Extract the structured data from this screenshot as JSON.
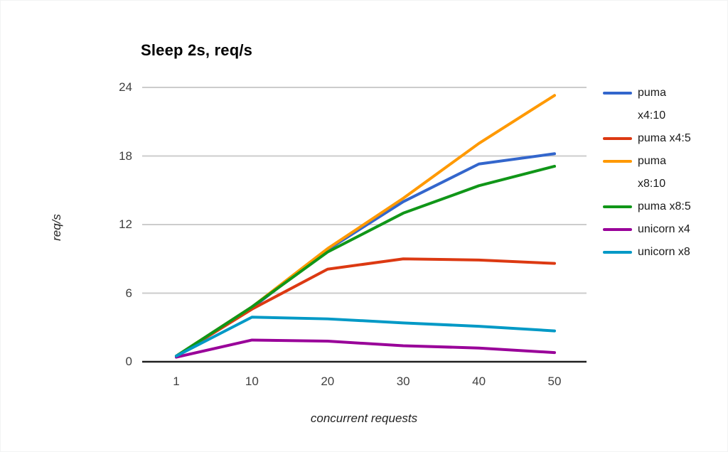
{
  "chart_data": {
    "type": "line",
    "title": "Sleep 2s, req/s",
    "xlabel": "concurrent requests",
    "ylabel": "req/s",
    "x_categories": [
      "1",
      "10",
      "20",
      "30",
      "40",
      "50"
    ],
    "yticks": [
      0,
      6,
      12,
      18,
      24
    ],
    "ylim": [
      0,
      24
    ],
    "grid": true,
    "legend_position": "right",
    "series": [
      {
        "name": "puma x4:10",
        "label_lines": [
          "puma",
          "x4:10"
        ],
        "color": "#3366CC",
        "values": [
          0.5,
          4.7,
          9.8,
          14.0,
          17.3,
          18.2
        ]
      },
      {
        "name": "puma x4:5",
        "label_lines": [
          "puma x4:5"
        ],
        "color": "#DC3912",
        "values": [
          0.5,
          4.6,
          8.1,
          9.0,
          8.9,
          8.6
        ]
      },
      {
        "name": "puma x8:10",
        "label_lines": [
          "puma",
          "x8:10"
        ],
        "color": "#FF9900",
        "values": [
          0.5,
          4.8,
          9.9,
          14.3,
          19.1,
          23.3
        ]
      },
      {
        "name": "puma x8:5",
        "label_lines": [
          "puma x8:5"
        ],
        "color": "#109618",
        "values": [
          0.5,
          4.8,
          9.6,
          13.0,
          15.4,
          17.1
        ]
      },
      {
        "name": "unicorn x4",
        "label_lines": [
          "unicorn x4"
        ],
        "color": "#990099",
        "values": [
          0.4,
          1.9,
          1.8,
          1.4,
          1.2,
          0.8
        ]
      },
      {
        "name": "unicorn x8",
        "label_lines": [
          "unicorn x8"
        ],
        "color": "#0099C6",
        "values": [
          0.5,
          3.9,
          3.75,
          3.4,
          3.1,
          2.7
        ]
      }
    ],
    "colors": {
      "gridline": "#CCCCCC",
      "axis_line": "#1F1F1F",
      "tick_label": "#404040",
      "title": "#000000",
      "background": "#FFFFFF"
    }
  }
}
